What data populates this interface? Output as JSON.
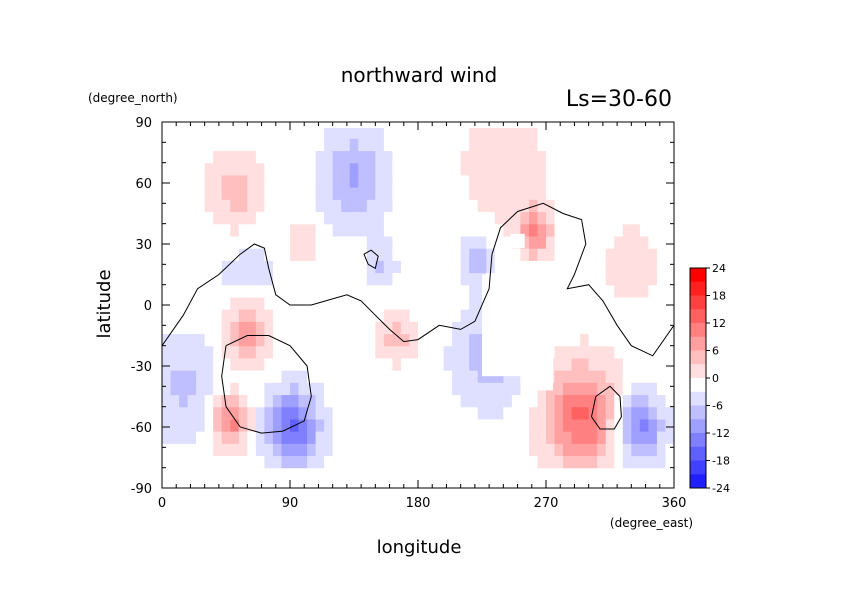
{
  "chart_data": {
    "type": "heatmap",
    "title": "northward wind",
    "subtitle": "Ls=30-60",
    "xlabel": "longitude",
    "ylabel": "latitude",
    "x_unit": "(degree_east)",
    "y_unit": "(degree_north)",
    "xlim": [
      0,
      360
    ],
    "ylim": [
      -90,
      90
    ],
    "x_ticks": [
      "0",
      "90",
      "180",
      "270",
      "360"
    ],
    "y_ticks": [
      "90",
      "60",
      "30",
      "0",
      "-30",
      "-60",
      "-90"
    ],
    "colorbar": {
      "labels": [
        "24",
        "18",
        "12",
        "6",
        "0",
        "-6",
        "-12",
        "-18",
        "-24"
      ],
      "range": [
        -24,
        24
      ],
      "step": 3
    },
    "colors": {
      "positive": "#ff0000",
      "negative": "#0000ff",
      "zero": "#ffffff",
      "contour": "#000000"
    },
    "features": [
      {
        "lon": 52,
        "lat": 55,
        "value": 6,
        "spread": 14
      },
      {
        "lon": 60,
        "lat": -12,
        "value": 10,
        "spread": 12
      },
      {
        "lon": 48,
        "lat": -57,
        "value": 12,
        "spread": 9
      },
      {
        "lon": 92,
        "lat": -60,
        "value": -14,
        "spread": 13
      },
      {
        "lon": 135,
        "lat": 62,
        "value": -8,
        "spread": 16
      },
      {
        "lon": 262,
        "lat": 36,
        "value": 12,
        "spread": 8
      },
      {
        "lon": 220,
        "lat": 22,
        "value": -7,
        "spread": 7
      },
      {
        "lon": 295,
        "lat": -55,
        "value": 14,
        "spread": 18
      },
      {
        "lon": 335,
        "lat": -60,
        "value": -12,
        "spread": 12
      },
      {
        "lon": 15,
        "lat": -40,
        "value": -5,
        "spread": 18
      },
      {
        "lon": 230,
        "lat": -25,
        "value": -6,
        "spread": 18
      },
      {
        "lon": 155,
        "lat": 20,
        "value": -5,
        "spread": 7
      },
      {
        "lon": 100,
        "lat": 30,
        "value": 4,
        "spread": 9
      },
      {
        "lon": 165,
        "lat": -15,
        "value": 6,
        "spread": 9
      },
      {
        "lon": 240,
        "lat": 70,
        "value": 4,
        "spread": 20
      },
      {
        "lon": 330,
        "lat": 20,
        "value": 3,
        "spread": 15
      },
      {
        "lon": 60,
        "lat": 10,
        "value": -3,
        "spread": 20
      }
    ],
    "contours": [
      [
        [
          0,
          -20
        ],
        [
          15,
          -5
        ],
        [
          25,
          8
        ],
        [
          40,
          15
        ],
        [
          55,
          25
        ],
        [
          65,
          30
        ],
        [
          72,
          28
        ],
        [
          75,
          18
        ],
        [
          80,
          5
        ],
        [
          90,
          0
        ],
        [
          105,
          0
        ],
        [
          115,
          2
        ],
        [
          130,
          5
        ],
        [
          140,
          2
        ],
        [
          150,
          -5
        ],
        [
          160,
          -12
        ],
        [
          170,
          -18
        ],
        [
          180,
          -17
        ],
        [
          195,
          -10
        ],
        [
          210,
          -12
        ],
        [
          220,
          -8
        ],
        [
          230,
          8
        ],
        [
          232,
          25
        ],
        [
          238,
          38
        ],
        [
          250,
          46
        ],
        [
          268,
          50
        ],
        [
          282,
          45
        ],
        [
          295,
          42
        ],
        [
          298,
          30
        ],
        [
          290,
          15
        ],
        [
          285,
          8
        ],
        [
          300,
          10
        ],
        [
          310,
          2
        ],
        [
          320,
          -10
        ],
        [
          330,
          -20
        ],
        [
          345,
          -25
        ],
        [
          360,
          -10
        ]
      ],
      [
        [
          45,
          -20
        ],
        [
          60,
          -15
        ],
        [
          75,
          -15
        ],
        [
          90,
          -20
        ],
        [
          102,
          -30
        ],
        [
          105,
          -45
        ],
        [
          100,
          -57
        ],
        [
          85,
          -62
        ],
        [
          70,
          -63
        ],
        [
          55,
          -60
        ],
        [
          45,
          -50
        ],
        [
          42,
          -35
        ],
        [
          45,
          -20
        ]
      ],
      [
        [
          145,
          20
        ],
        [
          150,
          18
        ],
        [
          152,
          24
        ],
        [
          147,
          27
        ],
        [
          142,
          25
        ],
        [
          145,
          20
        ]
      ],
      [
        [
          305,
          -45
        ],
        [
          315,
          -40
        ],
        [
          322,
          -45
        ],
        [
          323,
          -55
        ],
        [
          318,
          -61
        ],
        [
          308,
          -61
        ],
        [
          302,
          -55
        ],
        [
          305,
          -45
        ]
      ]
    ],
    "missing_regions": [
      {
        "lon": [
          225,
          275
        ],
        "lat": [
          -35,
          15
        ]
      },
      {
        "lon": [
          245,
          255
        ],
        "lat": [
          28,
          35
        ]
      },
      {
        "lon": [
          255,
          275
        ],
        "lat": [
          -42,
          -35
        ]
      }
    ]
  }
}
